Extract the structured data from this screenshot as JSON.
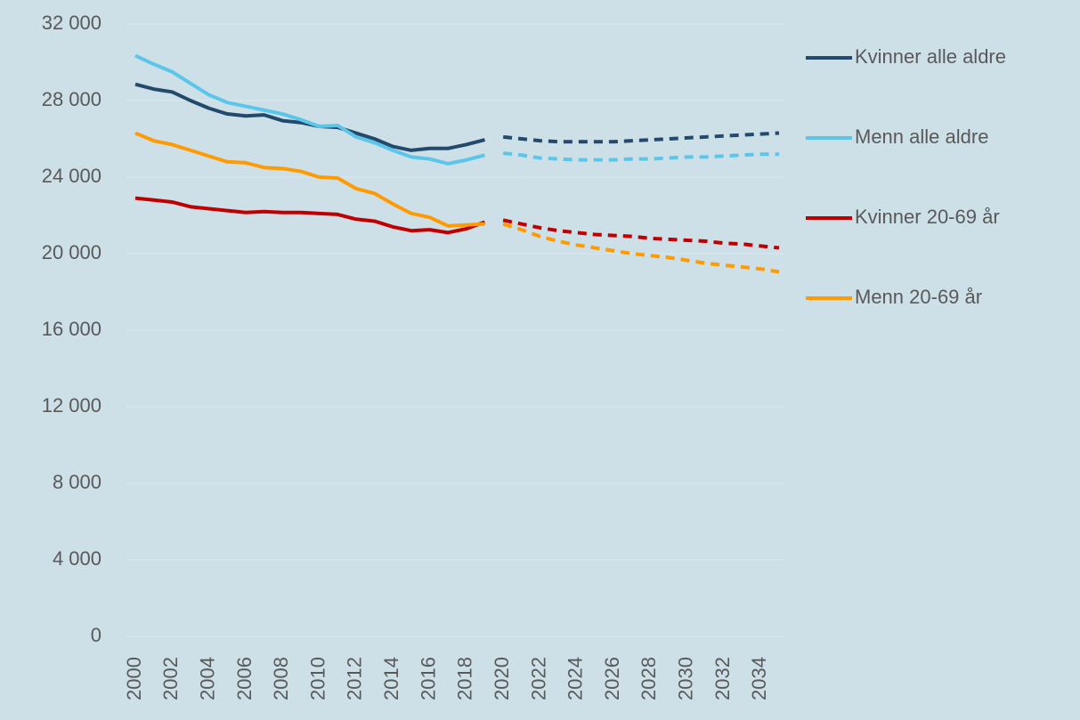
{
  "chart_data": {
    "type": "line",
    "x": [
      2000,
      2001,
      2002,
      2003,
      2004,
      2005,
      2006,
      2007,
      2008,
      2009,
      2010,
      2011,
      2012,
      2013,
      2014,
      2015,
      2016,
      2017,
      2018,
      2019,
      2020,
      2021,
      2022,
      2023,
      2024,
      2025,
      2026,
      2027,
      2028,
      2029,
      2030,
      2031,
      2032,
      2033,
      2034,
      2035
    ],
    "xlim": [
      2000,
      2035
    ],
    "xticks": [
      2000,
      2002,
      2004,
      2006,
      2008,
      2010,
      2012,
      2014,
      2016,
      2018,
      2020,
      2022,
      2024,
      2026,
      2028,
      2030,
      2032,
      2034
    ],
    "ylim": [
      0,
      32000
    ],
    "yticks": [
      0,
      {
        "value": 4000,
        "label": "4 000"
      },
      {
        "value": 8000,
        "label": "8 000"
      },
      {
        "value": 12000,
        "label": "12 000"
      },
      {
        "value": 16000,
        "label": "16 000"
      },
      {
        "value": 20000,
        "label": "20 000"
      },
      {
        "value": 24000,
        "label": "24 000"
      },
      {
        "value": 28000,
        "label": "28 000"
      },
      {
        "value": 32000,
        "label": "32 000"
      }
    ],
    "grid": true,
    "legend": "right",
    "forecast_from": 2020,
    "series": [
      {
        "name": "Kvinner alle aldre",
        "color": "#234a6c",
        "values": [
          28850,
          28600,
          28450,
          28000,
          27600,
          27300,
          27200,
          27250,
          26950,
          26850,
          26650,
          26600,
          26300,
          26000,
          25600,
          25400,
          25500,
          25500,
          25700,
          25950,
          26100,
          26000,
          25900,
          25850,
          25850,
          25850,
          25850,
          25900,
          25950,
          26000,
          26050,
          26100,
          26150,
          26200,
          26250,
          26300
        ]
      },
      {
        "name": "Menn alle aldre",
        "color": "#5bc5ea",
        "values": [
          30350,
          29900,
          29500,
          28900,
          28300,
          27900,
          27700,
          27500,
          27300,
          27000,
          26650,
          26700,
          26100,
          25800,
          25400,
          25050,
          24950,
          24700,
          24900,
          25150,
          25250,
          25150,
          25000,
          24950,
          24900,
          24900,
          24900,
          24950,
          24950,
          25000,
          25050,
          25050,
          25100,
          25150,
          25200,
          25200
        ]
      },
      {
        "name": "Kvinner 20-69 år",
        "color": "#c00000",
        "values": [
          22900,
          22800,
          22700,
          22450,
          22350,
          22250,
          22150,
          22200,
          22150,
          22150,
          22100,
          22050,
          21800,
          21700,
          21400,
          21200,
          21250,
          21100,
          21300,
          21650,
          21750,
          21550,
          21350,
          21200,
          21100,
          21000,
          20950,
          20900,
          20800,
          20750,
          20700,
          20650,
          20550,
          20500,
          20400,
          20300
        ]
      },
      {
        "name": "Menn 20-69 år",
        "color": "#ff9a00",
        "values": [
          26300,
          25900,
          25700,
          25400,
          25100,
          24800,
          24750,
          24500,
          24450,
          24300,
          24000,
          23950,
          23400,
          23150,
          22600,
          22100,
          21900,
          21450,
          21500,
          21550,
          21550,
          21250,
          20900,
          20650,
          20450,
          20300,
          20150,
          20000,
          19900,
          19800,
          19650,
          19500,
          19400,
          19300,
          19200,
          19050
        ]
      }
    ]
  }
}
